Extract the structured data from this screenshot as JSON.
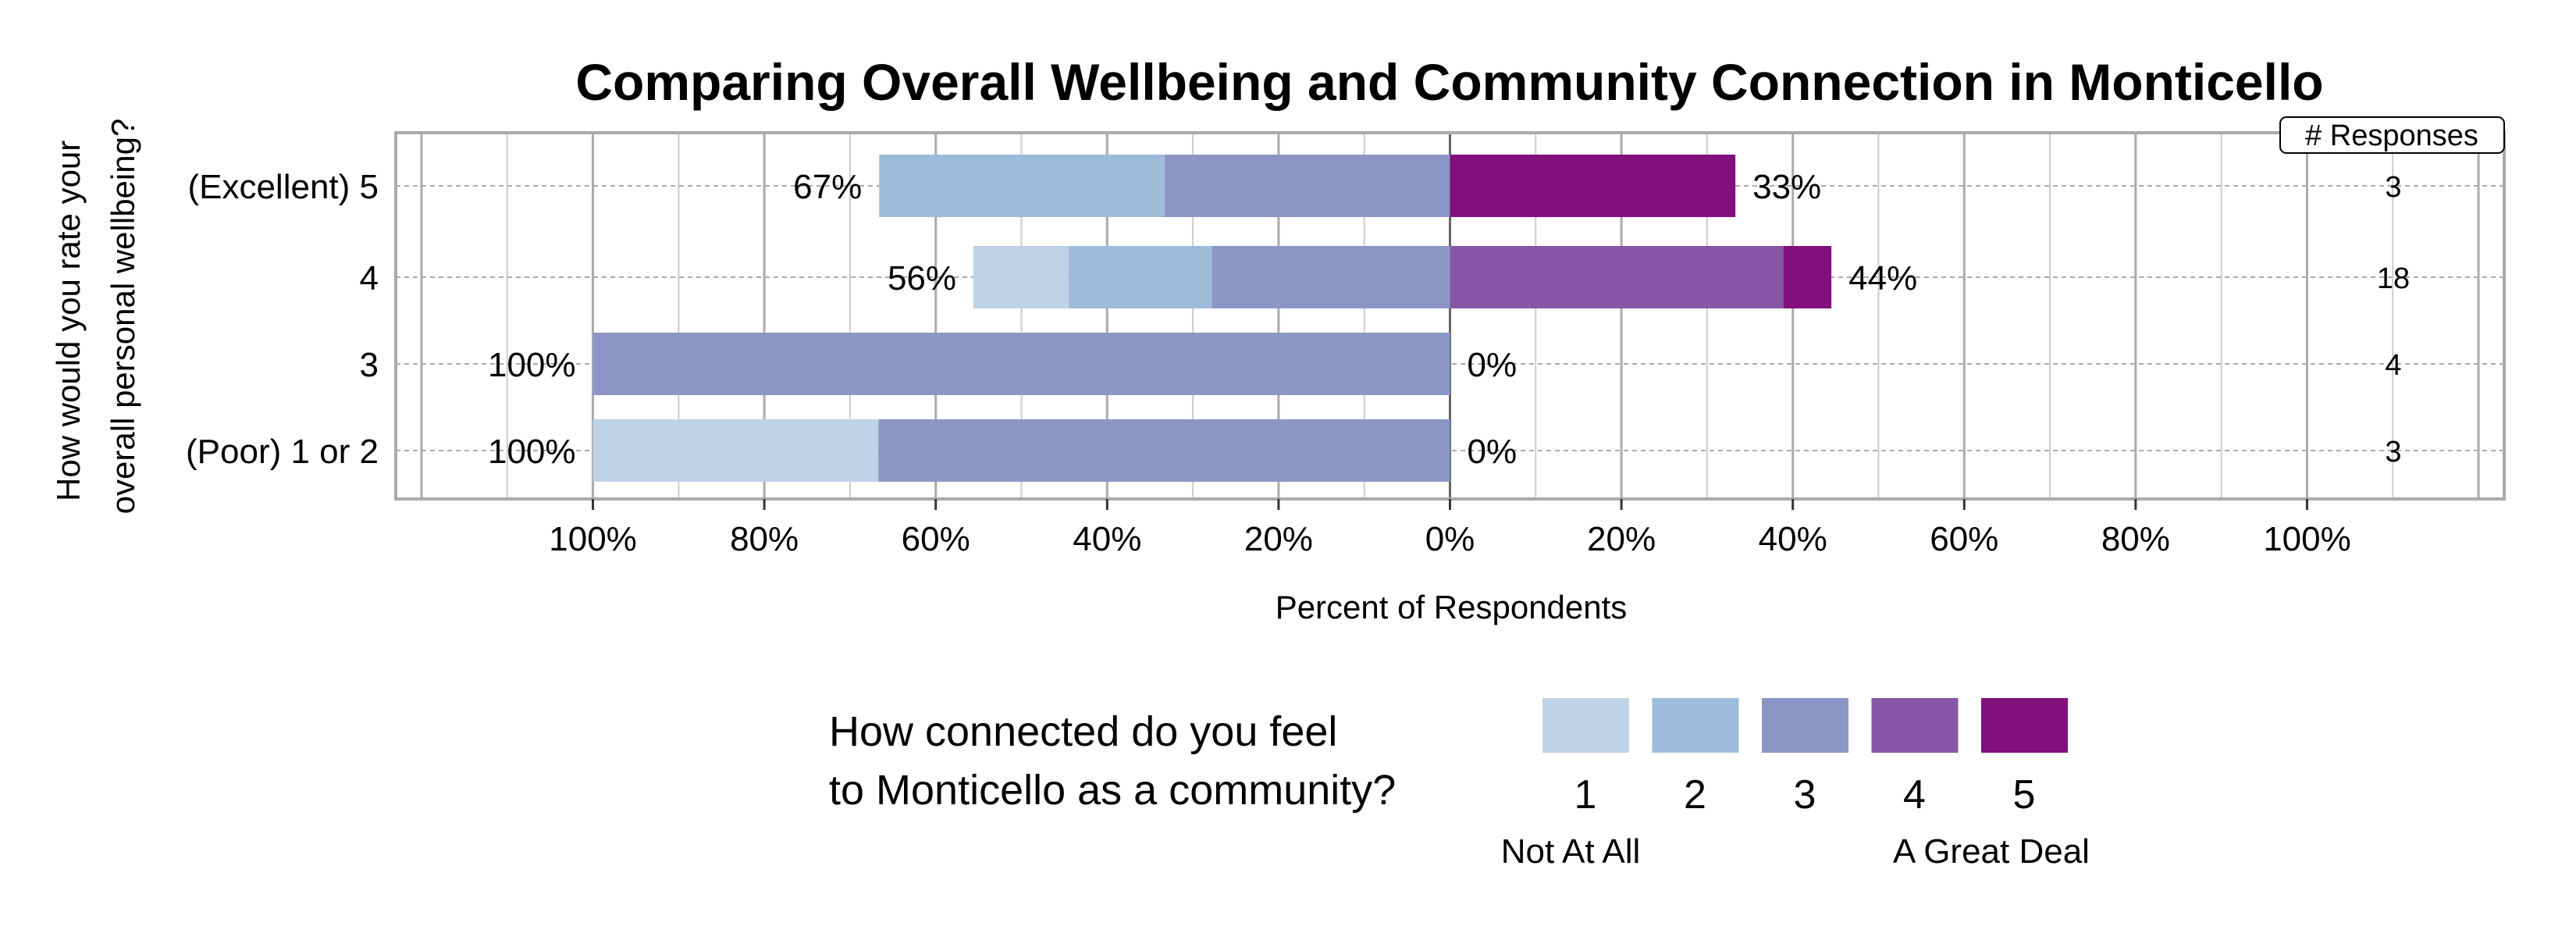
{
  "chart_data": {
    "type": "bar",
    "orientation": "horizontal",
    "stacked": "diverging",
    "title": "Comparing Overall Wellbeing and Community Connection in Monticello",
    "xlabel": "Percent of Respondents",
    "ylabel": "How would you rate your overall personal wellbeing?",
    "ylabel_lines": [
      "How would you rate your",
      "overall personal wellbeing?"
    ],
    "xlim": [
      -123,
      123
    ],
    "xticks": [
      -100,
      -80,
      -60,
      -40,
      -20,
      0,
      20,
      40,
      60,
      80,
      100
    ],
    "xtick_labels": [
      "100%",
      "80%",
      "60%",
      "40%",
      "20%",
      "0%",
      "20%",
      "40%",
      "60%",
      "80%",
      "100%"
    ],
    "grid": true,
    "categories": [
      "(Excellent) 5",
      "4",
      "3",
      "(Poor) 1 or 2"
    ],
    "responses_header": "# Responses",
    "responses": [
      "3",
      "18",
      "4",
      "3"
    ],
    "left_labels": [
      "67%",
      "56%",
      "100%",
      "100%"
    ],
    "right_labels": [
      "33%",
      "44%",
      "0%",
      "0%"
    ],
    "series": [
      {
        "name": "1",
        "side": "left",
        "color": "#bfd3e6",
        "values": [
          0,
          11.1,
          0,
          33.3
        ]
      },
      {
        "name": "2",
        "side": "left",
        "color": "#9ebcda",
        "values": [
          33.3,
          16.7,
          0,
          0
        ]
      },
      {
        "name": "3",
        "side": "left",
        "color": "#8c96c6",
        "values": [
          33.3,
          27.8,
          100,
          66.7
        ]
      },
      {
        "name": "4",
        "side": "right",
        "color": "#8856a7",
        "values": [
          0,
          38.9,
          0,
          0
        ]
      },
      {
        "name": "5",
        "side": "right",
        "color": "#810f7c",
        "values": [
          33.3,
          5.6,
          0,
          0
        ]
      }
    ],
    "legend": {
      "title_lines": [
        "How connected do you feel",
        "to Monticello as a community?"
      ],
      "labels": [
        "1",
        "2",
        "3",
        "4",
        "5"
      ],
      "low_label": "Not At All",
      "high_label": "A Great Deal",
      "placement": "bottom"
    }
  }
}
